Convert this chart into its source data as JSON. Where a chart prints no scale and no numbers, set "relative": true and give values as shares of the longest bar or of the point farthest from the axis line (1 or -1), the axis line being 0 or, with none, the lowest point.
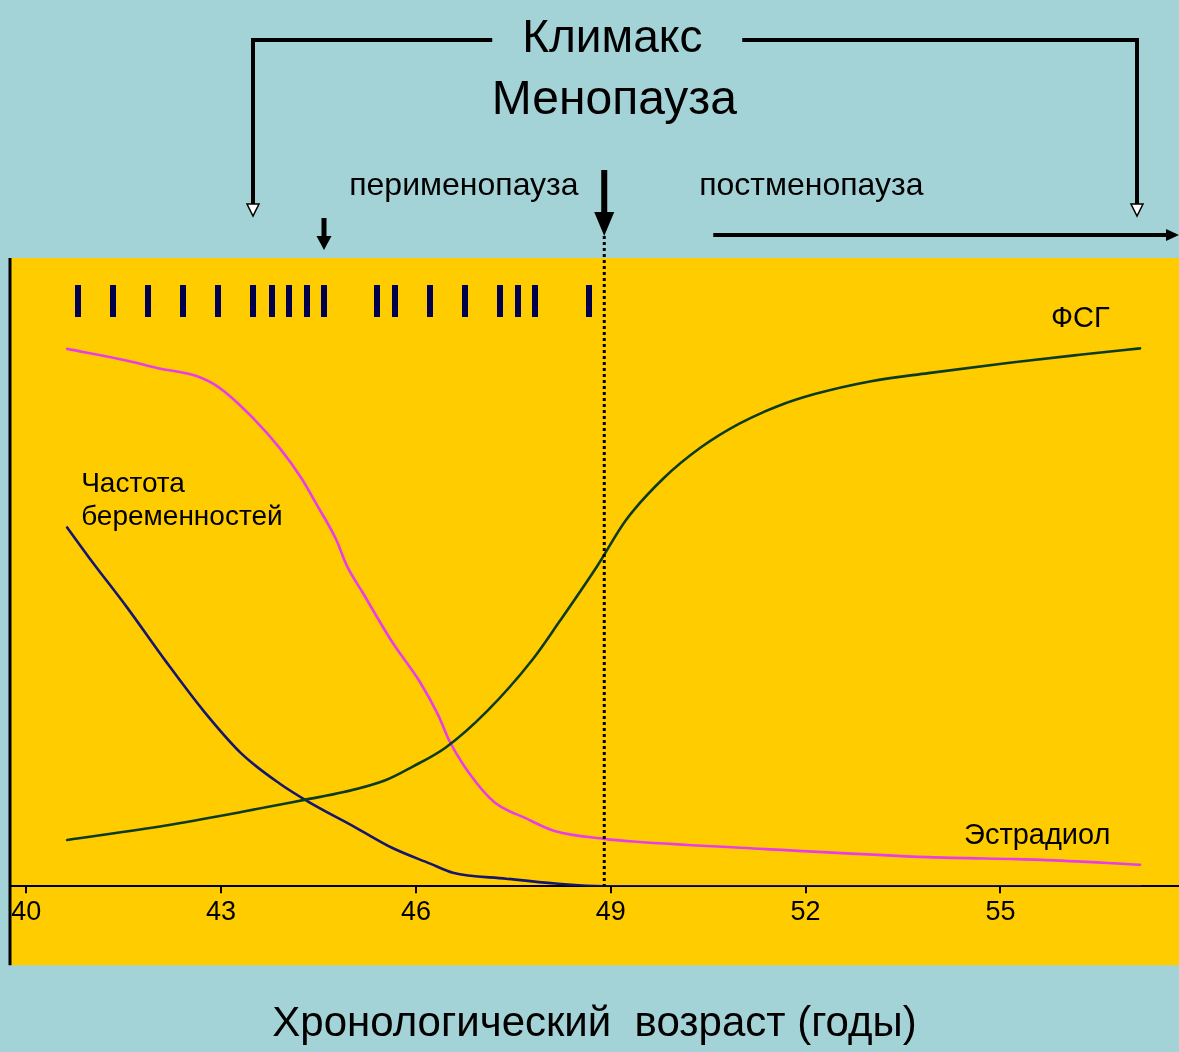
{
  "chart_data": {
    "type": "line",
    "title": "Климакс",
    "xlabel": "Хронологический  возраст (годы)",
    "annotations": [
      "перименопауза",
      "постменопауза"
    ],
    "relative": true,
    "xlim": [
      39.75,
      57.75
    ],
    "xticks": [
      40,
      43,
      46,
      49,
      52,
      55
    ],
    "ref_lines": [
      {
        "axis": "x",
        "value": 48.9,
        "label": "Менопауза",
        "color": "#000000",
        "line_style": "dotted"
      }
    ],
    "series": [
      {
        "name": "ФСГ",
        "color": "#0d3b1e",
        "x": [
          40.63,
          42.15,
          43.31,
          44.3,
          44.89,
          45.53,
          45.93,
          46.46,
          47.1,
          47.8,
          48.21,
          48.79,
          49.23,
          49.81,
          50.39,
          50.98,
          51.56,
          52.14,
          53.01,
          53.89,
          55.05,
          56.22,
          57.15
        ],
        "values": [
          0.086,
          0.113,
          0.138,
          0.161,
          0.175,
          0.197,
          0.221,
          0.258,
          0.326,
          0.422,
          0.492,
          0.595,
          0.68,
          0.758,
          0.816,
          0.86,
          0.892,
          0.915,
          0.939,
          0.954,
          0.972,
          0.988,
          1
        ]
      },
      {
        "name": "Эстрадиол",
        "color": "#e83ee8",
        "x": [
          40.63,
          41.56,
          42.03,
          42.61,
          42.96,
          43.43,
          43.9,
          44.24,
          44.48,
          44.77,
          44.94,
          45.18,
          45.64,
          46.05,
          46.34,
          46.52,
          46.81,
          47.21,
          47.68,
          48.15,
          48.9,
          49.35,
          51.55,
          53.89,
          55.63,
          57.15
        ],
        "values": [
          0.999,
          0.977,
          0.963,
          0.949,
          0.928,
          0.878,
          0.815,
          0.758,
          0.708,
          0.645,
          0.595,
          0.546,
          0.453,
          0.382,
          0.319,
          0.269,
          0.212,
          0.156,
          0.127,
          0.102,
          0.088,
          0.083,
          0.068,
          0.054,
          0.049,
          0.04
        ]
      },
      {
        "name": "Частота беременностей",
        "color": "#16166e",
        "x": [
          40.63,
          40.98,
          41.56,
          42.15,
          42.73,
          43.31,
          43.9,
          44.36,
          45.06,
          45.64,
          46.22,
          46.57,
          47.39,
          48.15,
          48.9,
          57.15
        ],
        "values": [
          0.667,
          0.609,
          0.517,
          0.418,
          0.326,
          0.247,
          0.191,
          0.156,
          0.11,
          0.071,
          0.042,
          0.025,
          0.014,
          0.005,
          0,
          0
        ]
      }
    ]
  }
}
